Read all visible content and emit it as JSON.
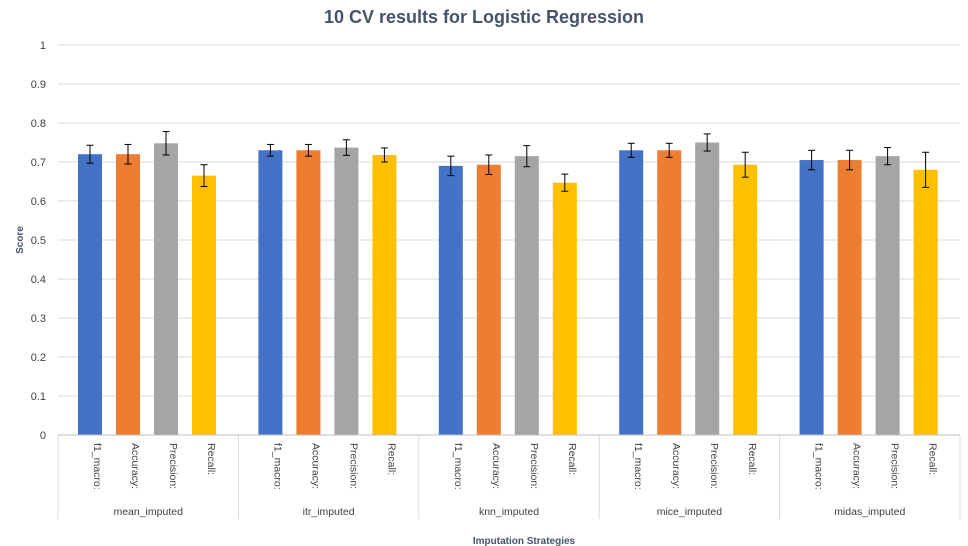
{
  "chart_data": {
    "type": "bar",
    "title": "10 CV results for Logistic Regression",
    "xlabel": "Imputation Strategies",
    "ylabel": "Score",
    "ylim": [
      0,
      1
    ],
    "yticks": [
      "0",
      "0.1",
      "0.2",
      "0.3",
      "0.4",
      "0.5",
      "0.6",
      "0.7",
      "0.8",
      "0.9",
      "1"
    ],
    "grid": true,
    "error_bars": true,
    "groups": [
      "mean_imputed",
      "itr_imputed",
      "knn_imputed",
      "mice_imputed",
      "midas_imputed"
    ],
    "metrics": [
      "f1_macro:",
      "Accuracy:",
      "Precision:",
      "Recall:"
    ],
    "colors": [
      "#4472c4",
      "#ed7d31",
      "#a5a5a5",
      "#ffc000"
    ],
    "values": [
      [
        0.72,
        0.72,
        0.748,
        0.665
      ],
      [
        0.73,
        0.73,
        0.737,
        0.718
      ],
      [
        0.69,
        0.693,
        0.715,
        0.647
      ],
      [
        0.73,
        0.73,
        0.75,
        0.693
      ],
      [
        0.705,
        0.705,
        0.715,
        0.68
      ]
    ],
    "errors": [
      [
        0.023,
        0.025,
        0.03,
        0.028
      ],
      [
        0.015,
        0.015,
        0.02,
        0.018
      ],
      [
        0.025,
        0.025,
        0.027,
        0.022
      ],
      [
        0.018,
        0.018,
        0.022,
        0.032
      ],
      [
        0.025,
        0.025,
        0.022,
        0.045
      ]
    ]
  }
}
